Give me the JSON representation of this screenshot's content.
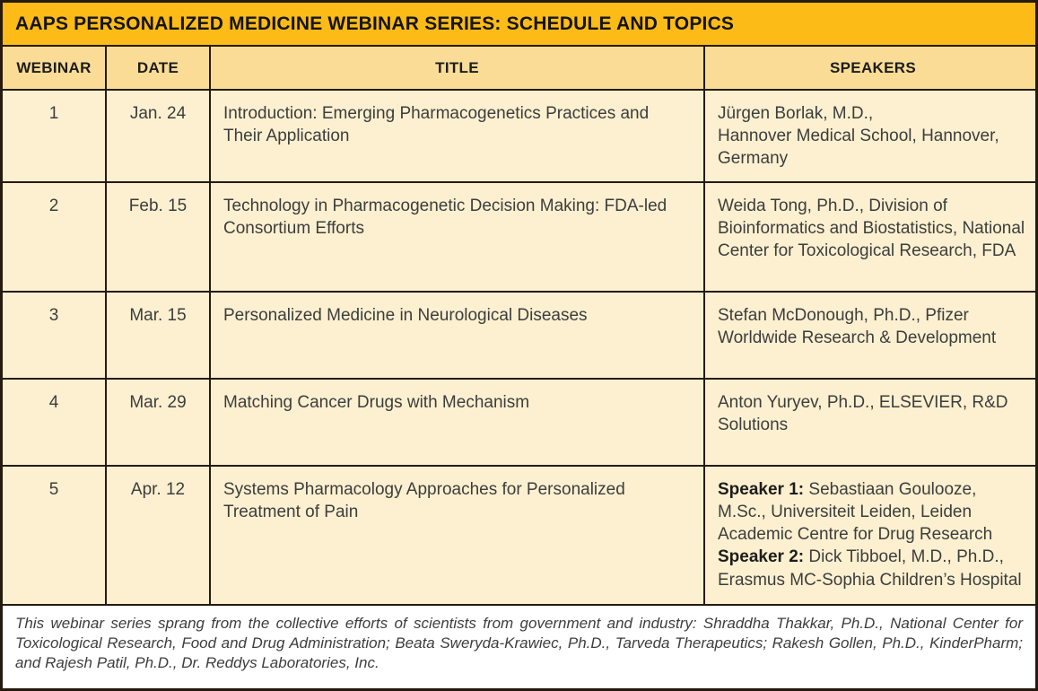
{
  "title": "AAPS PERSONALIZED MEDICINE WEBINAR SERIES: SCHEDULE AND TOPICS",
  "columns": [
    "WEBINAR",
    "DATE",
    "TITLE",
    "SPEAKERS"
  ],
  "rows": [
    {
      "webinar": "1",
      "date": "Jan. 24",
      "title": "Introduction: Emerging Pharmacogenetics Practices and Their Application",
      "speakers": [
        {
          "text": "Jürgen Borlak, M.D.,"
        },
        {
          "text": "Hannover Medical School, Hannover, Germany"
        }
      ]
    },
    {
      "webinar": "2",
      "date": "Feb. 15",
      "title": "Technology in Pharmacogenetic Decision Making: FDA-led Consortium Efforts",
      "speakers": [
        {
          "text": "Weida Tong, Ph.D., Division of Bioinformatics and Biostatistics, National Center for Toxicological Research, FDA"
        }
      ]
    },
    {
      "webinar": "3",
      "date": "Mar. 15",
      "title": "Personalized Medicine in Neurological Diseases",
      "speakers": [
        {
          "text": "Stefan McDonough, Ph.D., Pfizer Worldwide Research & Development"
        }
      ]
    },
    {
      "webinar": "4",
      "date": "Mar. 29",
      "title": "Matching Cancer Drugs with Mechanism",
      "speakers": [
        {
          "text": "Anton Yuryev, Ph.D., ELSEVIER, R&D Solutions"
        }
      ]
    },
    {
      "webinar": "5",
      "date": "Apr. 12",
      "title": "Systems Pharmacology Approaches for Personalized Treatment of Pain",
      "speakers": [
        {
          "bold": "Speaker 1:",
          "text": " Sebastiaan Goulooze, M.Sc., Universiteit Leiden, Leiden Academic Centre for Drug Research"
        },
        {
          "bold": "Speaker 2:",
          "text": " Dick Tibboel, M.D., Ph.D., Erasmus MC-Sophia Children’s Hospital"
        }
      ]
    }
  ],
  "footnote": "This webinar series sprang from the collective efforts of scientists from government and industry: Shraddha Thakkar, Ph.D., National Center for Toxicological Research, Food and Drug Administration; Beata Sweryda-Krawiec, Ph.D., Tarveda Therapeutics; Rakesh Gollen, Ph.D., KinderPharm; and Rajesh Patil, Ph.D., Dr. Reddys Laboratories, Inc.",
  "colors": {
    "title_bar": "#fcbb17",
    "header_row": "#fadc96",
    "cell_bg": "#fcf0d0",
    "border": "#261a10",
    "footer_bg": "#ffffff"
  }
}
